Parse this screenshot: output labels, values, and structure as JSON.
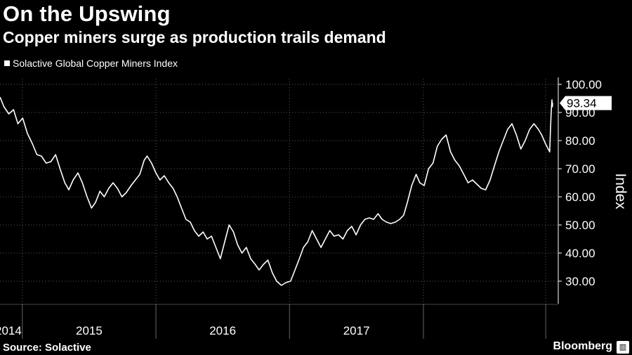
{
  "header": {
    "title": "On the Upswing",
    "subtitle": "Copper miners surge as production trails demand"
  },
  "footer": {
    "source": "Source: Solactive",
    "brand": "Bloomberg",
    "brand_icon": "bloomberg-terminal-icon"
  },
  "chart_data": {
    "type": "line",
    "title": "On the Upswing",
    "subtitle": "Copper miners surge as production trails demand",
    "ylabel": "Index",
    "xlabel": "",
    "ylim": [
      22,
      102
    ],
    "xlim": [
      "2013-11-01",
      "2017-12-20"
    ],
    "yticks": [
      30,
      40,
      50,
      60,
      70,
      80,
      90,
      100
    ],
    "ytick_labels": [
      "30.00",
      "40.00",
      "50.00",
      "60.00",
      "70.00",
      "80.00",
      "90.00",
      "100.00"
    ],
    "x_period_labels": [
      "2014",
      "2015",
      "2016",
      "2017"
    ],
    "x_period_boundaries": [
      "2014-01-01",
      "2015-01-01",
      "2016-01-01",
      "2017-01-01",
      "2017-12-01"
    ],
    "grid": true,
    "legend": "top-left",
    "last_value_label": "93.34",
    "colors": {
      "line": "#ffffff",
      "background": "#000000",
      "grid": "#5a5a5a"
    },
    "series": [
      {
        "name": "Solactive Global Copper Miners Index",
        "points": [
          [
            "2013-11-01",
            95.5
          ],
          [
            "2013-11-12",
            92.0
          ],
          [
            "2013-11-25",
            89.5
          ],
          [
            "2013-12-08",
            91.0
          ],
          [
            "2013-12-20",
            86.0
          ],
          [
            "2014-01-02",
            88.0
          ],
          [
            "2014-01-15",
            82.5
          ],
          [
            "2014-01-28",
            79.0
          ],
          [
            "2014-02-10",
            75.0
          ],
          [
            "2014-02-22",
            74.5
          ],
          [
            "2014-03-07",
            72.0
          ],
          [
            "2014-03-20",
            72.5
          ],
          [
            "2014-04-02",
            75.0
          ],
          [
            "2014-04-14",
            70.0
          ],
          [
            "2014-04-27",
            65.0
          ],
          [
            "2014-05-08",
            62.5
          ],
          [
            "2014-05-20",
            66.0
          ],
          [
            "2014-06-02",
            68.5
          ],
          [
            "2014-06-14",
            65.0
          ],
          [
            "2014-06-27",
            60.0
          ],
          [
            "2014-07-09",
            56.0
          ],
          [
            "2014-07-20",
            58.0
          ],
          [
            "2014-08-01",
            62.0
          ],
          [
            "2014-08-13",
            60.0
          ],
          [
            "2014-08-25",
            63.0
          ],
          [
            "2014-09-06",
            65.0
          ],
          [
            "2014-09-18",
            63.0
          ],
          [
            "2014-09-30",
            60.0
          ],
          [
            "2014-10-12",
            61.5
          ],
          [
            "2014-10-25",
            64.0
          ],
          [
            "2014-11-06",
            66.0
          ],
          [
            "2014-11-18",
            68.0
          ],
          [
            "2014-11-30",
            73.0
          ],
          [
            "2014-12-08",
            74.5
          ],
          [
            "2014-12-20",
            72.0
          ],
          [
            "2015-01-01",
            68.5
          ],
          [
            "2015-01-12",
            66.0
          ],
          [
            "2015-01-24",
            67.5
          ],
          [
            "2015-02-05",
            65.0
          ],
          [
            "2015-02-17",
            63.0
          ],
          [
            "2015-02-28",
            60.0
          ],
          [
            "2015-03-12",
            56.0
          ],
          [
            "2015-03-24",
            52.0
          ],
          [
            "2015-04-05",
            51.0
          ],
          [
            "2015-04-16",
            48.0
          ],
          [
            "2015-04-28",
            46.0
          ],
          [
            "2015-05-10",
            47.5
          ],
          [
            "2015-05-21",
            45.0
          ],
          [
            "2015-06-02",
            46.0
          ],
          [
            "2015-06-14",
            42.0
          ],
          [
            "2015-06-26",
            38.0
          ],
          [
            "2015-07-08",
            44.0
          ],
          [
            "2015-07-20",
            50.0
          ],
          [
            "2015-08-01",
            47.5
          ],
          [
            "2015-08-12",
            43.0
          ],
          [
            "2015-08-24",
            40.0
          ],
          [
            "2015-09-05",
            42.0
          ],
          [
            "2015-09-17",
            38.0
          ],
          [
            "2015-09-29",
            36.0
          ],
          [
            "2015-10-10",
            34.0
          ],
          [
            "2015-10-22",
            36.0
          ],
          [
            "2015-11-03",
            37.5
          ],
          [
            "2015-11-15",
            33.0
          ],
          [
            "2015-11-27",
            30.0
          ],
          [
            "2015-12-10",
            28.5
          ],
          [
            "2015-12-22",
            29.5
          ],
          [
            "2016-01-04",
            30.0
          ],
          [
            "2016-01-16",
            34.0
          ],
          [
            "2016-01-28",
            38.0
          ],
          [
            "2016-02-08",
            42.0
          ],
          [
            "2016-02-20",
            44.0
          ],
          [
            "2016-03-03",
            48.0
          ],
          [
            "2016-03-15",
            45.0
          ],
          [
            "2016-03-27",
            42.0
          ],
          [
            "2016-04-08",
            45.0
          ],
          [
            "2016-04-20",
            48.0
          ],
          [
            "2016-05-02",
            46.0
          ],
          [
            "2016-05-14",
            46.5
          ],
          [
            "2016-05-26",
            45.0
          ],
          [
            "2016-06-07",
            48.0
          ],
          [
            "2016-06-19",
            49.5
          ],
          [
            "2016-07-01",
            46.5
          ],
          [
            "2016-07-13",
            50.0
          ],
          [
            "2016-07-25",
            52.0
          ],
          [
            "2016-08-06",
            52.5
          ],
          [
            "2016-08-18",
            52.0
          ],
          [
            "2016-08-30",
            54.0
          ],
          [
            "2016-09-10",
            52.0
          ],
          [
            "2016-09-22",
            51.0
          ],
          [
            "2016-10-04",
            50.5
          ],
          [
            "2016-10-16",
            51.0
          ],
          [
            "2016-10-28",
            52.0
          ],
          [
            "2016-11-08",
            53.5
          ],
          [
            "2016-11-18",
            58.0
          ],
          [
            "2016-11-30",
            64.0
          ],
          [
            "2016-12-12",
            68.0
          ],
          [
            "2016-12-22",
            65.0
          ],
          [
            "2017-01-03",
            64.0
          ],
          [
            "2017-01-15",
            70.0
          ],
          [
            "2017-01-27",
            72.0
          ],
          [
            "2017-02-08",
            78.0
          ],
          [
            "2017-02-20",
            80.5
          ],
          [
            "2017-03-04",
            82.0
          ],
          [
            "2017-03-16",
            76.0
          ],
          [
            "2017-03-28",
            73.0
          ],
          [
            "2017-04-09",
            71.0
          ],
          [
            "2017-04-21",
            68.0
          ],
          [
            "2017-05-03",
            65.0
          ],
          [
            "2017-05-15",
            66.0
          ],
          [
            "2017-05-27",
            64.5
          ],
          [
            "2017-06-08",
            63.0
          ],
          [
            "2017-06-20",
            62.5
          ],
          [
            "2017-07-02",
            66.0
          ],
          [
            "2017-07-14",
            71.0
          ],
          [
            "2017-07-26",
            76.0
          ],
          [
            "2017-08-07",
            80.0
          ],
          [
            "2017-08-19",
            84.0
          ],
          [
            "2017-08-31",
            86.0
          ],
          [
            "2017-09-12",
            82.0
          ],
          [
            "2017-09-24",
            77.0
          ],
          [
            "2017-10-06",
            80.0
          ],
          [
            "2017-10-18",
            84.0
          ],
          [
            "2017-10-30",
            86.0
          ],
          [
            "2017-11-11",
            84.0
          ],
          [
            "2017-11-20",
            82.0
          ],
          [
            "2017-11-30",
            79.0
          ],
          [
            "2017-12-08",
            77.0
          ],
          [
            "2017-12-12",
            76.0
          ],
          [
            "2017-12-14",
            84.0
          ],
          [
            "2017-12-16",
            90.0
          ],
          [
            "2017-12-18",
            94.5
          ],
          [
            "2017-12-19",
            92.0
          ],
          [
            "2017-12-20",
            93.34
          ]
        ]
      }
    ]
  }
}
